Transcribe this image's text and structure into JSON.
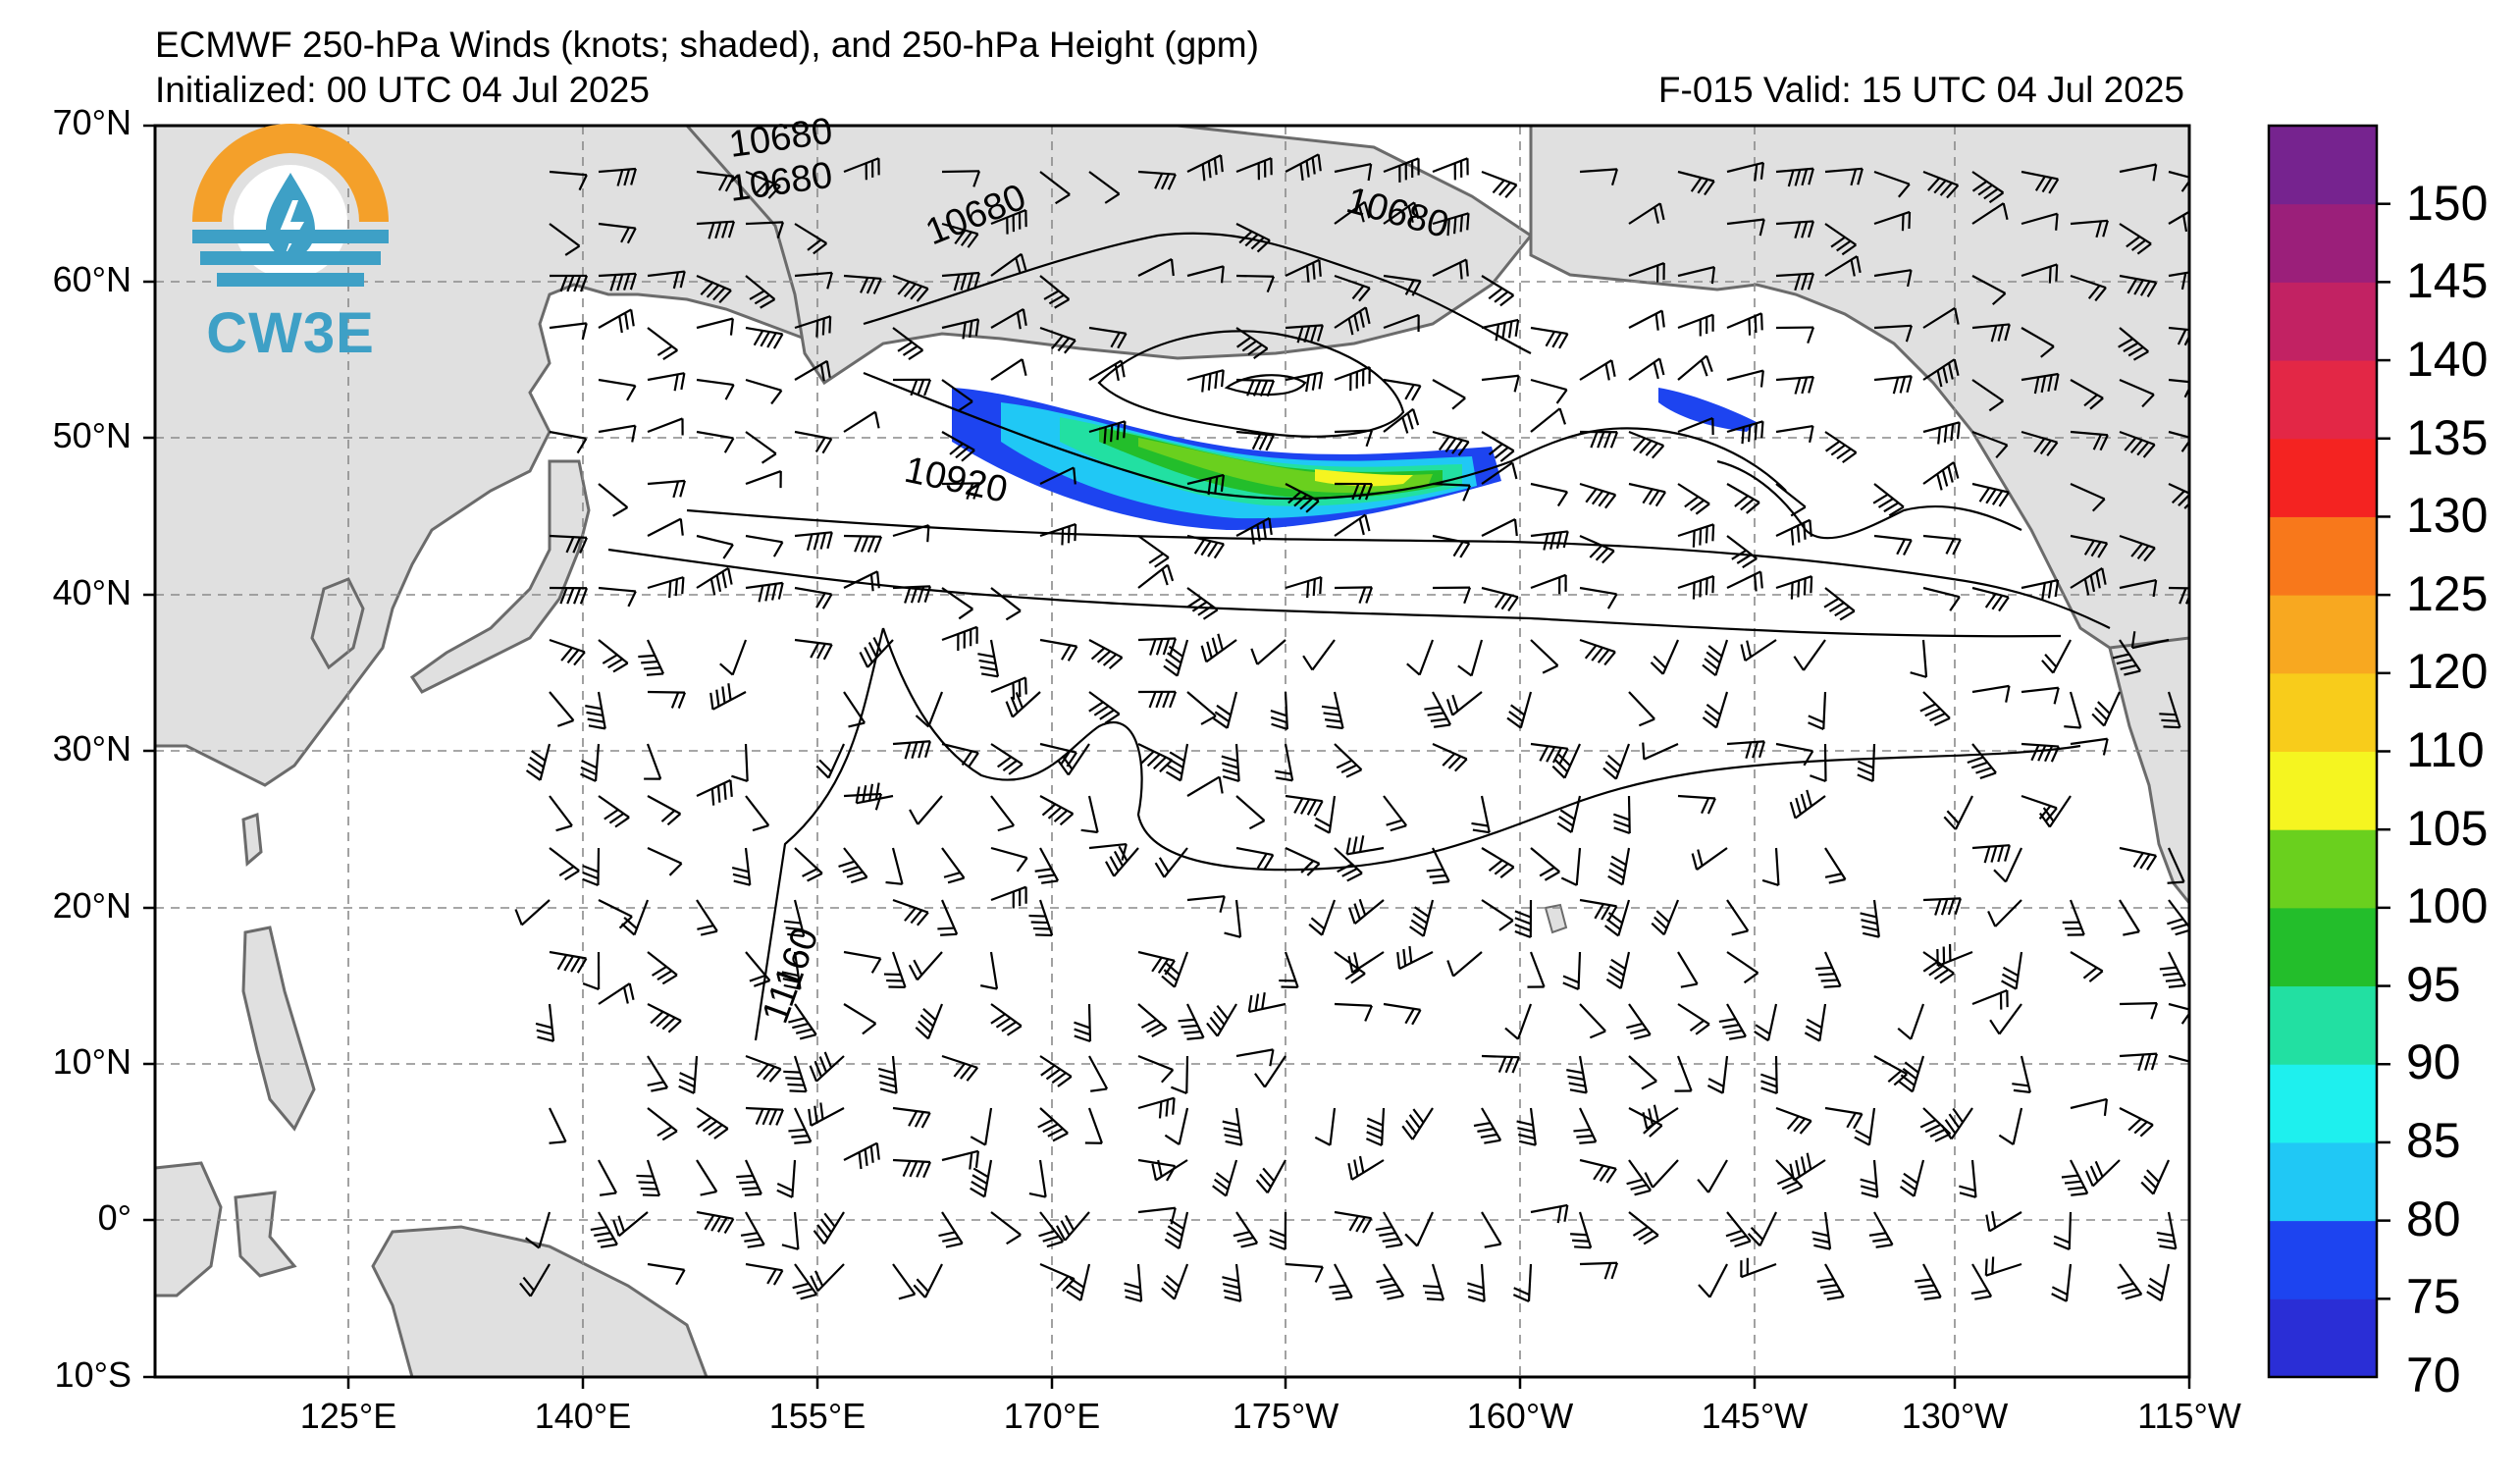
{
  "header": {
    "title": "ECMWF 250-hPa Winds (knots; shaded), and 250-hPa Height (gpm)",
    "initialized": "Initialized: 00 UTC 04 Jul 2025",
    "valid": "F-015  Valid: 15 UTC 04 Jul 2025"
  },
  "logo": {
    "text": "CW3E",
    "icon": "water-drop-lightning-icon"
  },
  "axes": {
    "lat_labels": [
      "70°N",
      "60°N",
      "50°N",
      "40°N",
      "30°N",
      "20°N",
      "10°N",
      "0°",
      "10°S"
    ],
    "lon_labels": [
      "125°E",
      "140°E",
      "155°E",
      "170°E",
      "175°W",
      "160°W",
      "145°W",
      "130°W",
      "115°W"
    ]
  },
  "contours": {
    "labels": [
      "10680",
      "10680",
      "10680",
      "10680",
      "10920",
      "11160"
    ]
  },
  "colorbar": {
    "labels": [
      "70",
      "75",
      "80",
      "85",
      "90",
      "95",
      "100",
      "105",
      "110",
      "120",
      "125",
      "130",
      "135",
      "140",
      "145",
      "150"
    ],
    "colors": [
      "#2a2ed6",
      "#1d44f0",
      "#20c8f5",
      "#1ef0ee",
      "#22e0a2",
      "#23be2b",
      "#6ad01e",
      "#f5f520",
      "#f8cc1b",
      "#f8a820",
      "#f8781b",
      "#f42321",
      "#e32746",
      "#c22263",
      "#9b1f7a",
      "#76238f"
    ]
  },
  "map_colors": {
    "land": "#e0e0e0",
    "coast": "#6b6b6b",
    "grid": "#8a8a8a"
  }
}
